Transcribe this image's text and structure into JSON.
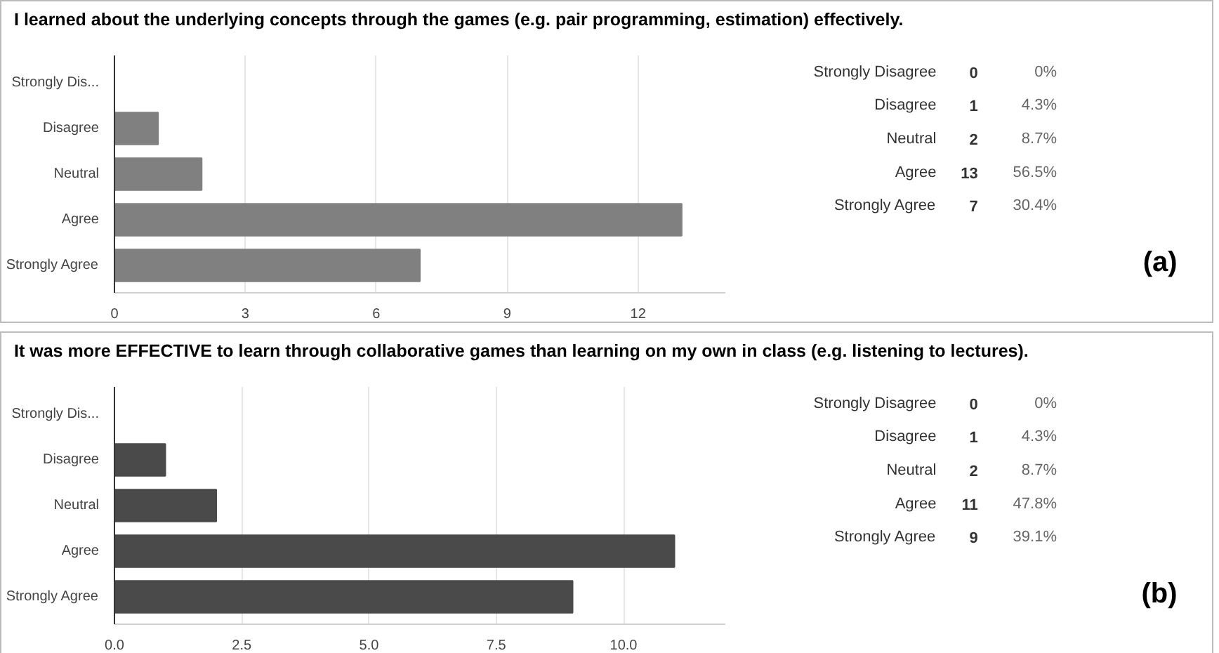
{
  "chart_data": [
    {
      "type": "bar",
      "orientation": "horizontal",
      "title": "I learned about the underlying concepts through the games (e.g. pair programming, estimation) effectively.",
      "categories": [
        "Strongly Dis...",
        "Disagree",
        "Neutral",
        "Agree",
        "Strongly Agree"
      ],
      "values": [
        0,
        1,
        2,
        13,
        7
      ],
      "color": "#808080",
      "xlim": [
        0,
        14
      ],
      "xticks": [
        0,
        3,
        6,
        9,
        12
      ],
      "grid": "x",
      "annotations": [
        "Strongly Disagree",
        "0",
        "0%",
        "Disagree",
        "1",
        "4.3%",
        "Neutral",
        "2",
        "8.7%",
        "Agree",
        "13",
        "56.5%",
        "Strongly Agree",
        "7",
        "30.4%",
        "(a)"
      ]
    },
    {
      "type": "bar",
      "orientation": "horizontal",
      "title": "It was more EFFECTIVE to learn through collaborative games than learning on my own in class (e.g. listening to lectures).",
      "categories": [
        "Strongly Dis...",
        "Disagree",
        "Neutral",
        "Agree",
        "Strongly Agree"
      ],
      "values": [
        0,
        1,
        2,
        11,
        9
      ],
      "color": "#4a4a4a",
      "xlim": [
        0,
        12
      ],
      "xticks": [
        {
          "value": 0,
          "label": "0.0"
        },
        {
          "value": 2.5,
          "label": "2.5"
        },
        {
          "value": 5,
          "label": "5.0"
        },
        {
          "value": 7.5,
          "label": "7.5"
        },
        {
          "value": 10,
          "label": "10.0"
        }
      ],
      "grid": "x",
      "annotations": [
        "Strongly Disagree",
        "0",
        "0%",
        "Disagree",
        "1",
        "4.3%",
        "Neutral",
        "2",
        "8.7%",
        "Agree",
        "11",
        "47.8%",
        "Strongly Agree",
        "9",
        "39.1%",
        "(b)"
      ]
    }
  ]
}
